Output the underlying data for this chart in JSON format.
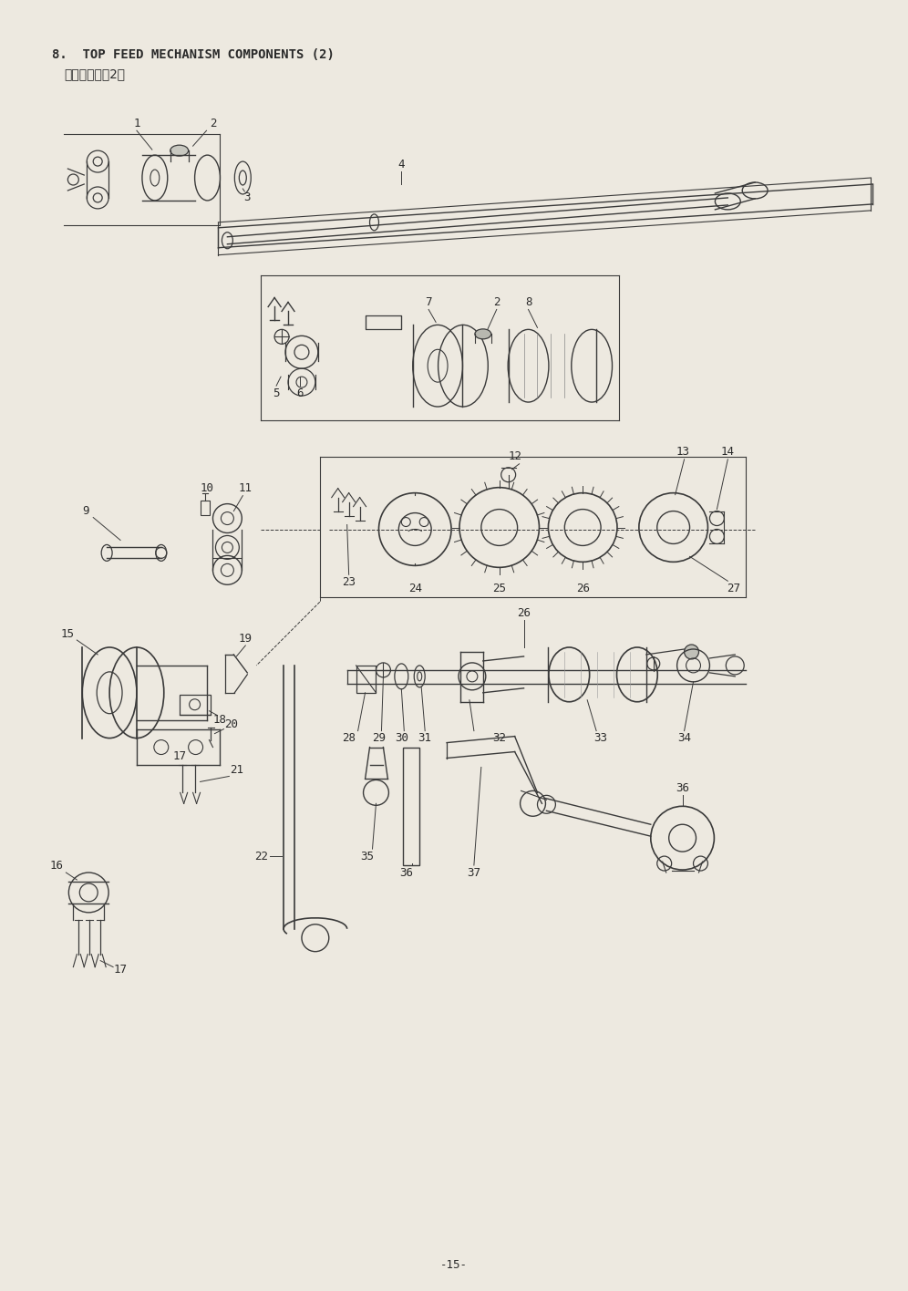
{
  "title_line1": "8.  TOP FEED MECHANISM COMPONENTS (2)",
  "title_line2": "上送り関係（2）",
  "page_number": "-15-",
  "bg_color": "#ede9e0",
  "line_color": "#3a3a3a",
  "text_color": "#2a2a2a",
  "fig_w": 9.96,
  "fig_h": 14.16,
  "dpi": 100
}
